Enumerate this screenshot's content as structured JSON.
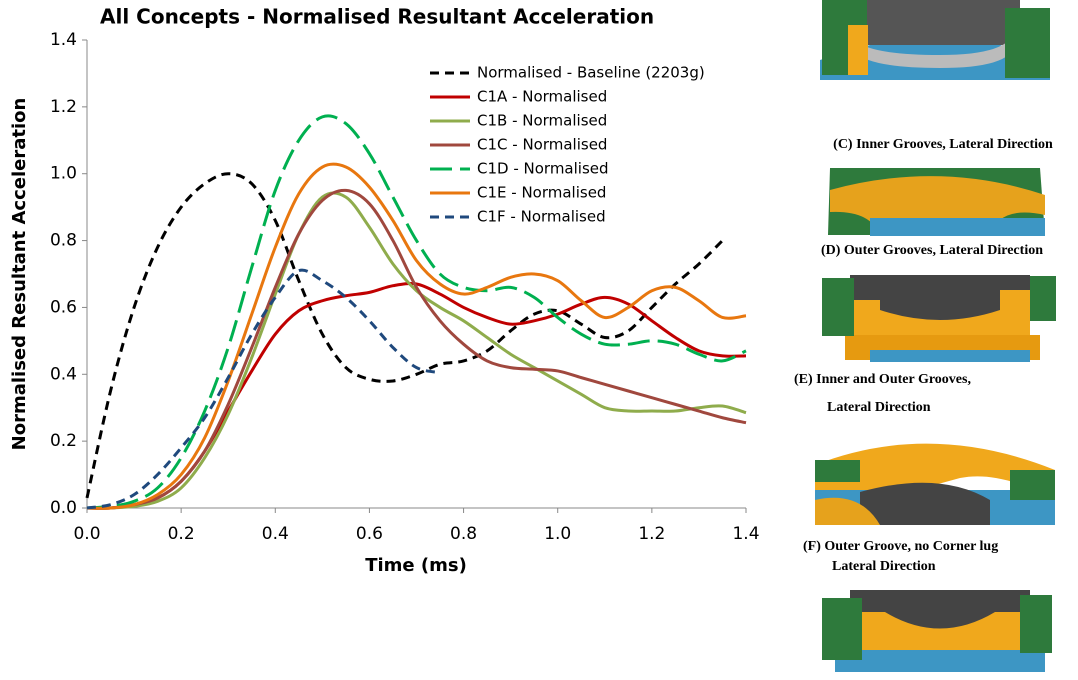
{
  "chart_data": {
    "type": "line",
    "title": "All Concepts - Normalised Resultant Acceleration",
    "x_label": "Time (ms)",
    "y_label": "Normalised Resultant Acceleration",
    "x": [
      0,
      0.05,
      0.1,
      0.15,
      0.2,
      0.25,
      0.3,
      0.35,
      0.4,
      0.45,
      0.5,
      0.55,
      0.6,
      0.65,
      0.7,
      0.75,
      0.8,
      0.85,
      0.9,
      0.95,
      1.0,
      1.05,
      1.1,
      1.15,
      1.2,
      1.25,
      1.3,
      1.35,
      1.4
    ],
    "xlim": [
      0,
      1.4
    ],
    "ylim": [
      0,
      1.4
    ],
    "xticks": [
      {
        "value": 0,
        "label": "0.0"
      },
      0.2,
      0.4,
      0.6,
      0.8,
      {
        "value": 1,
        "label": "1.0"
      },
      1.2,
      1.4
    ],
    "yticks": [
      {
        "value": 0,
        "label": "0.0"
      },
      0.2,
      0.4,
      0.6,
      0.8,
      {
        "value": 1,
        "label": "1.0"
      },
      1.2,
      1.4
    ],
    "series": [
      {
        "name": "Normalised - Baseline (2203g)",
        "color": "#000000",
        "dash": "dashed",
        "values": [
          0.03,
          0.35,
          0.6,
          0.78,
          0.9,
          0.97,
          1.0,
          0.97,
          0.86,
          0.68,
          0.52,
          0.42,
          0.385,
          0.38,
          0.4,
          0.43,
          0.44,
          0.47,
          0.53,
          0.58,
          0.59,
          0.55,
          0.51,
          0.53,
          0.6,
          0.67,
          0.73,
          0.8,
          null
        ]
      },
      {
        "name": "C1A - Normalised",
        "color": "#c00000",
        "dash": "solid",
        "values": [
          0,
          0,
          0.01,
          0.03,
          0.08,
          0.17,
          0.29,
          0.41,
          0.52,
          0.59,
          0.62,
          0.635,
          0.645,
          0.665,
          0.67,
          0.64,
          0.6,
          0.57,
          0.55,
          0.56,
          0.58,
          0.61,
          0.63,
          0.61,
          0.56,
          0.51,
          0.47,
          0.455,
          0.455
        ]
      },
      {
        "name": "C1B - Normalised",
        "color": "#8fac4c",
        "dash": "solid",
        "values": [
          0,
          0,
          0.005,
          0.02,
          0.06,
          0.15,
          0.28,
          0.45,
          0.64,
          0.82,
          0.93,
          0.93,
          0.84,
          0.73,
          0.65,
          0.6,
          0.56,
          0.51,
          0.46,
          0.42,
          0.38,
          0.34,
          0.3,
          0.29,
          0.29,
          0.29,
          0.3,
          0.305,
          0.285
        ]
      },
      {
        "name": "C1C - Normalised",
        "color": "#a0483e",
        "dash": "solid",
        "values": [
          0,
          0,
          0.01,
          0.03,
          0.08,
          0.17,
          0.31,
          0.48,
          0.66,
          0.82,
          0.92,
          0.95,
          0.91,
          0.8,
          0.66,
          0.56,
          0.49,
          0.44,
          0.42,
          0.415,
          0.41,
          0.39,
          0.37,
          0.35,
          0.33,
          0.31,
          0.29,
          0.27,
          0.255
        ]
      },
      {
        "name": "C1D - Normalised",
        "color": "#00b050",
        "dash": "longdash",
        "values": [
          0,
          0.005,
          0.02,
          0.06,
          0.15,
          0.29,
          0.48,
          0.72,
          0.95,
          1.1,
          1.17,
          1.15,
          1.06,
          0.93,
          0.8,
          0.7,
          0.66,
          0.65,
          0.66,
          0.63,
          0.57,
          0.52,
          0.49,
          0.49,
          0.5,
          0.49,
          0.46,
          0.44,
          0.47
        ]
      },
      {
        "name": "C1E - Normalised",
        "color": "#e8770f",
        "dash": "solid",
        "values": [
          0,
          0,
          0.01,
          0.04,
          0.1,
          0.21,
          0.38,
          0.58,
          0.78,
          0.94,
          1.02,
          1.02,
          0.96,
          0.86,
          0.74,
          0.67,
          0.64,
          0.66,
          0.69,
          0.7,
          0.68,
          0.62,
          0.57,
          0.6,
          0.65,
          0.66,
          0.62,
          0.57,
          0.575
        ]
      },
      {
        "name": "C1F - Normalised",
        "color": "#1f497d",
        "dash": "dashed",
        "values": [
          0,
          0.01,
          0.04,
          0.1,
          0.18,
          0.27,
          0.39,
          0.52,
          0.63,
          0.71,
          0.68,
          0.63,
          0.56,
          0.48,
          0.42,
          0.405,
          null,
          null,
          null,
          null,
          null,
          null,
          null,
          null,
          null,
          null,
          null,
          null,
          null
        ]
      }
    ]
  },
  "side_panels": [
    {
      "caption": [
        "(C) Inner Grooves, Lateral Direction"
      ]
    },
    {
      "caption": [
        "(D) Outer Grooves, Lateral Direction"
      ]
    },
    {
      "caption": [
        "(E) Inner and Outer Grooves,",
        "Lateral Direction"
      ]
    },
    {
      "caption": [
        "(F) Outer Groove, no Corner lug",
        "Lateral Direction"
      ]
    }
  ]
}
